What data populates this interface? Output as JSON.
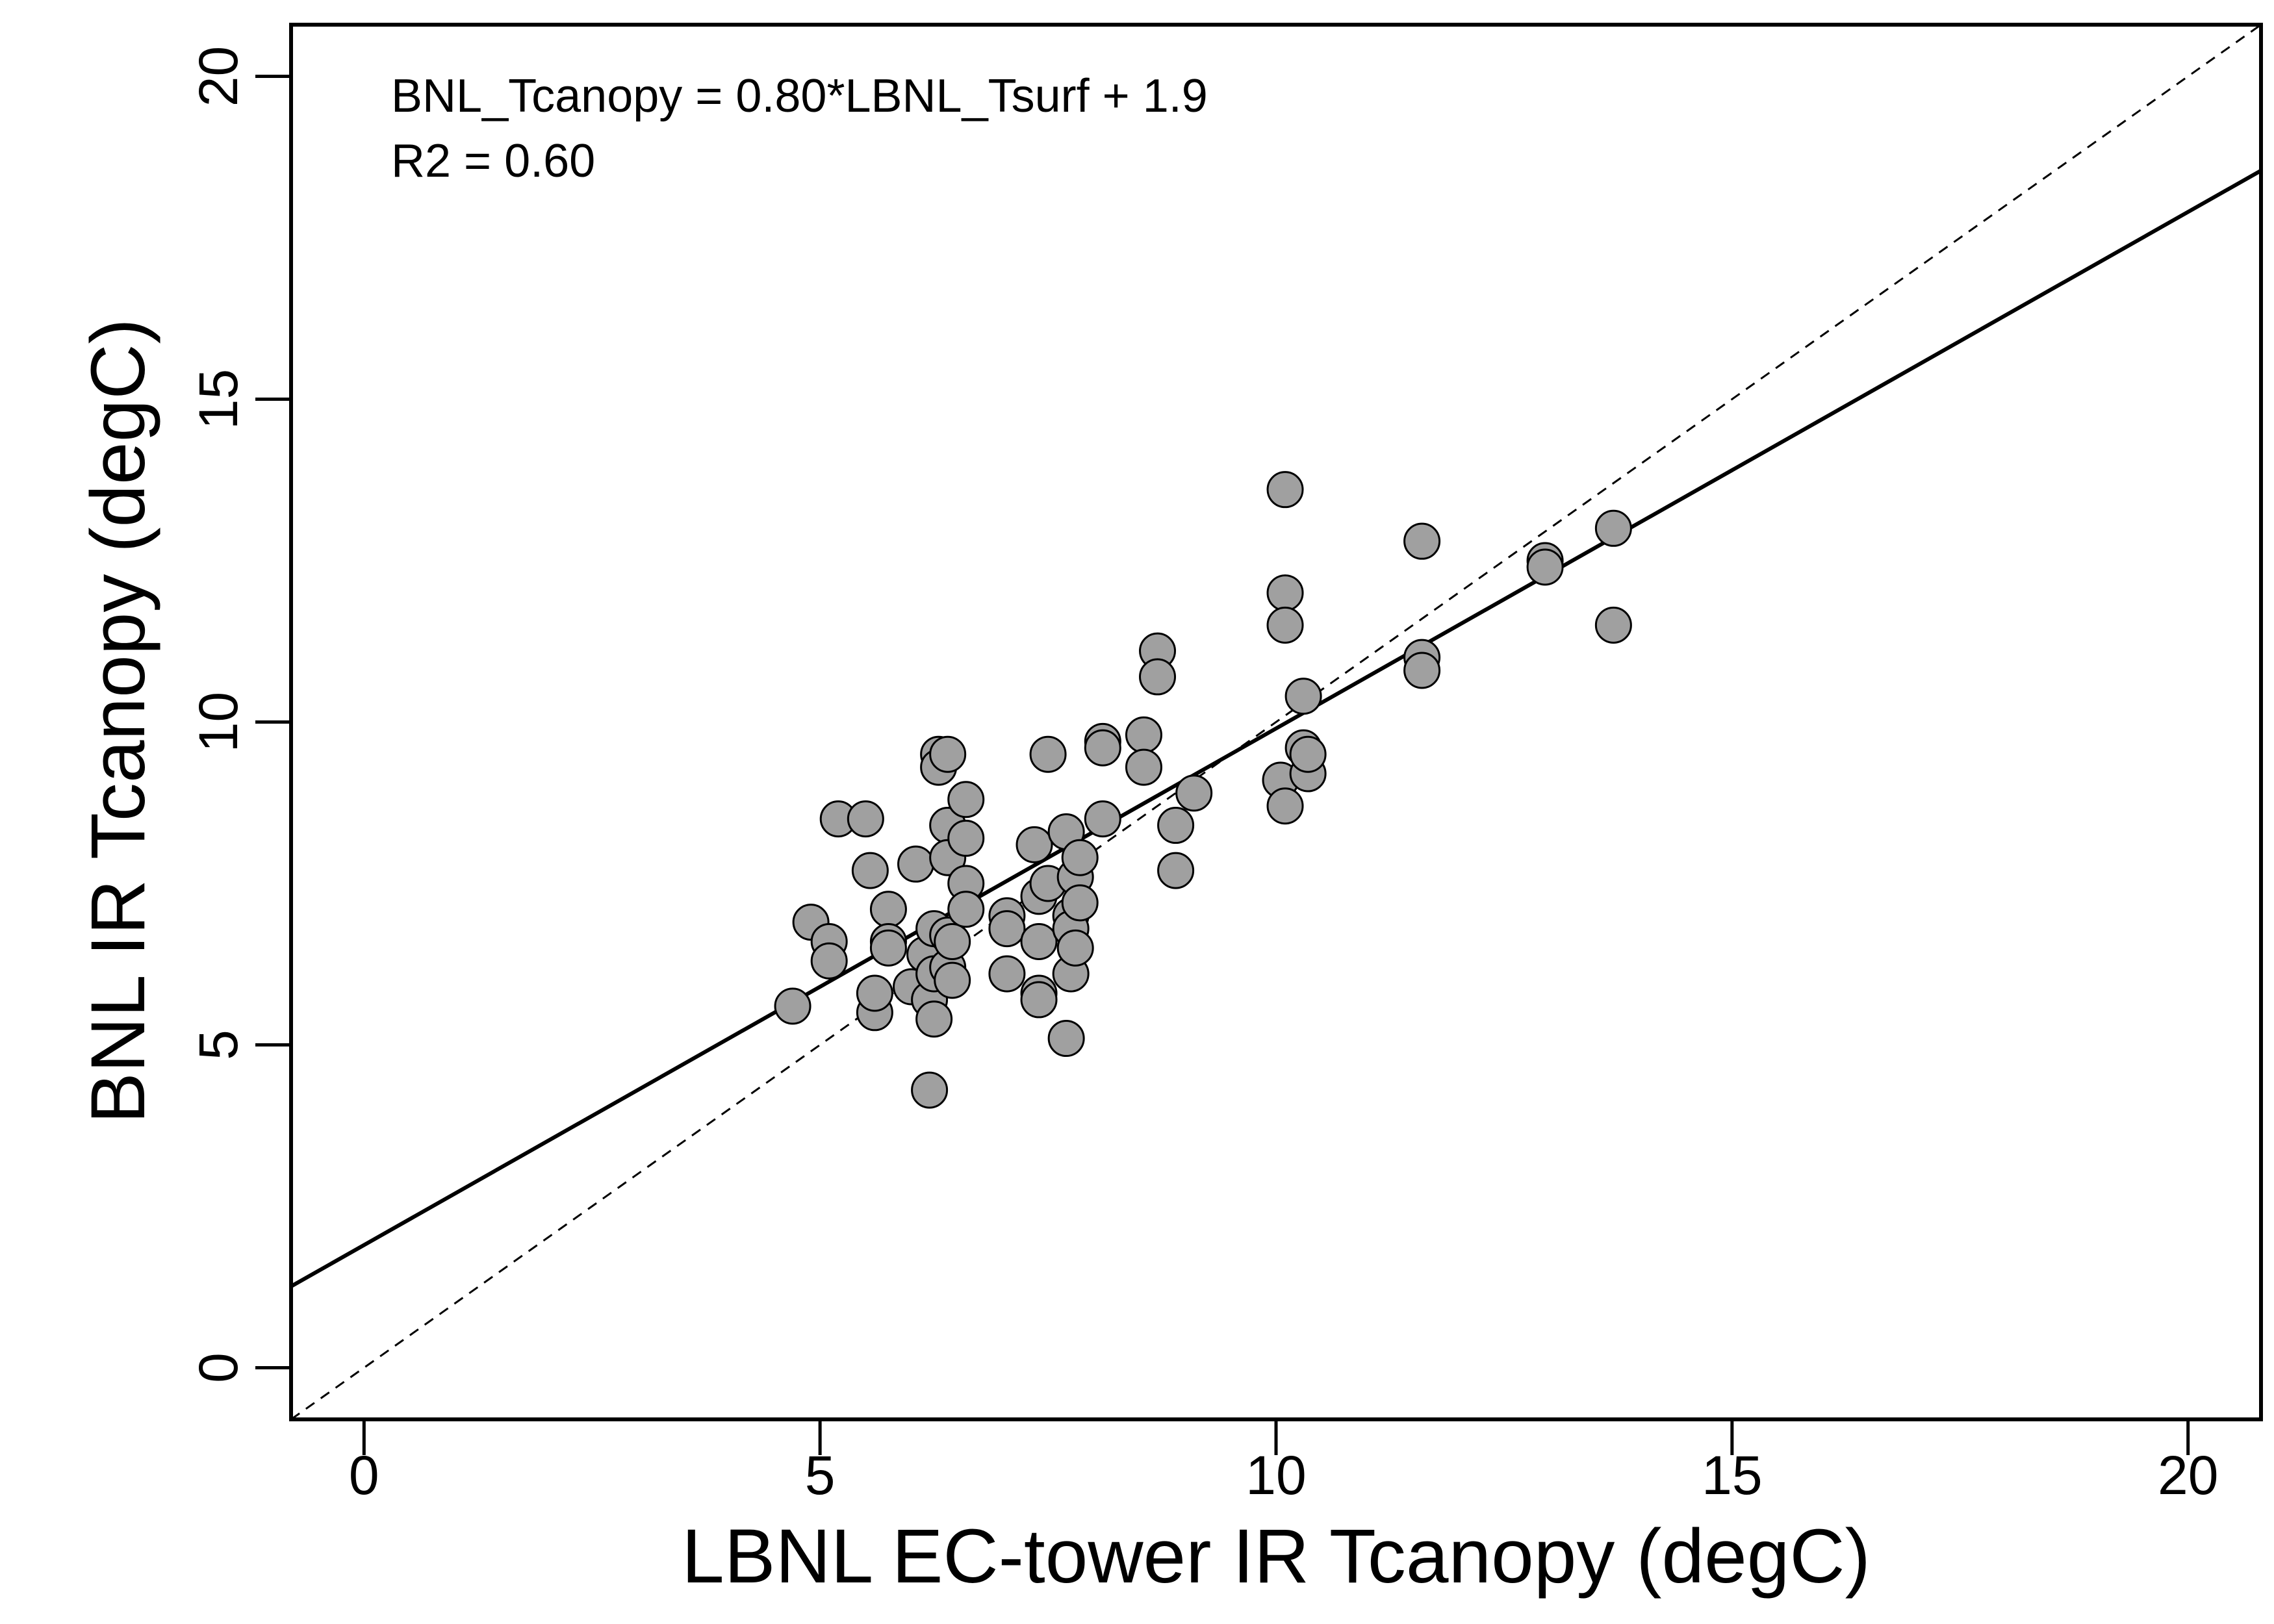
{
  "chart_data": {
    "type": "scatter",
    "xlabel": "LBNL EC-tower IR Tcanopy (degC)",
    "ylabel": "BNL IR Tcanopy (degC)",
    "xlim": [
      -0.8,
      20.8
    ],
    "ylim": [
      -0.8,
      20.8
    ],
    "xticks": [
      0,
      5,
      10,
      15,
      20
    ],
    "yticks": [
      0,
      5,
      10,
      15,
      20
    ],
    "grid": false,
    "annotations": [
      "BNL_Tcanopy = 0.80*LBNL_Tsurf + 1.9",
      "R2 = 0.60"
    ],
    "fit_line": {
      "slope": 0.8,
      "intercept": 1.9
    },
    "identity_line": {
      "slope": 1,
      "intercept": 0,
      "style": "dashed"
    },
    "marker_color": "#a0a0a0",
    "marker_edge": "#000000",
    "points": [
      [
        4.7,
        5.6
      ],
      [
        4.9,
        6.9
      ],
      [
        5.1,
        6.6
      ],
      [
        5.1,
        6.3
      ],
      [
        5.2,
        8.5
      ],
      [
        5.5,
        8.5
      ],
      [
        5.55,
        7.7
      ],
      [
        5.6,
        5.5
      ],
      [
        5.6,
        5.8
      ],
      [
        5.75,
        7.1
      ],
      [
        5.75,
        6.6
      ],
      [
        5.75,
        6.5
      ],
      [
        6.0,
        5.9
      ],
      [
        6.05,
        7.8
      ],
      [
        6.15,
        6.4
      ],
      [
        6.2,
        5.7
      ],
      [
        6.25,
        5.4
      ],
      [
        6.2,
        4.3
      ],
      [
        6.25,
        6.1
      ],
      [
        6.25,
        6.8
      ],
      [
        6.3,
        9.5
      ],
      [
        6.3,
        9.3
      ],
      [
        6.4,
        9.5
      ],
      [
        6.4,
        8.4
      ],
      [
        6.4,
        7.9
      ],
      [
        6.4,
        6.7
      ],
      [
        6.4,
        6.2
      ],
      [
        6.45,
        6.0
      ],
      [
        6.45,
        6.6
      ],
      [
        6.6,
        8.8
      ],
      [
        6.6,
        8.2
      ],
      [
        6.6,
        7.5
      ],
      [
        6.6,
        7.1
      ],
      [
        7.05,
        7.0
      ],
      [
        7.05,
        6.8
      ],
      [
        7.05,
        6.1
      ],
      [
        7.35,
        8.1
      ],
      [
        7.4,
        7.3
      ],
      [
        7.4,
        6.6
      ],
      [
        7.4,
        5.8
      ],
      [
        7.4,
        5.7
      ],
      [
        7.5,
        9.5
      ],
      [
        7.5,
        7.5
      ],
      [
        7.7,
        8.3
      ],
      [
        7.7,
        5.1
      ],
      [
        7.75,
        7.0
      ],
      [
        7.75,
        6.8
      ],
      [
        7.75,
        6.1
      ],
      [
        7.8,
        7.6
      ],
      [
        7.8,
        6.5
      ],
      [
        7.85,
        7.9
      ],
      [
        7.85,
        7.2
      ],
      [
        8.1,
        9.7
      ],
      [
        8.1,
        9.6
      ],
      [
        8.1,
        8.5
      ],
      [
        8.55,
        9.8
      ],
      [
        8.55,
        9.3
      ],
      [
        8.7,
        11.1
      ],
      [
        8.7,
        10.7
      ],
      [
        8.9,
        8.4
      ],
      [
        8.9,
        7.7
      ],
      [
        9.1,
        8.9
      ],
      [
        10.05,
        9.1
      ],
      [
        10.1,
        8.7
      ],
      [
        10.1,
        13.6
      ],
      [
        10.1,
        12.0
      ],
      [
        10.1,
        11.5
      ],
      [
        10.3,
        10.4
      ],
      [
        10.3,
        9.6
      ],
      [
        10.35,
        9.2
      ],
      [
        10.35,
        9.5
      ],
      [
        11.6,
        12.8
      ],
      [
        11.6,
        11.0
      ],
      [
        11.6,
        10.8
      ],
      [
        12.95,
        12.5
      ],
      [
        12.95,
        12.4
      ],
      [
        13.7,
        13.0
      ],
      [
        13.7,
        11.5
      ]
    ]
  }
}
